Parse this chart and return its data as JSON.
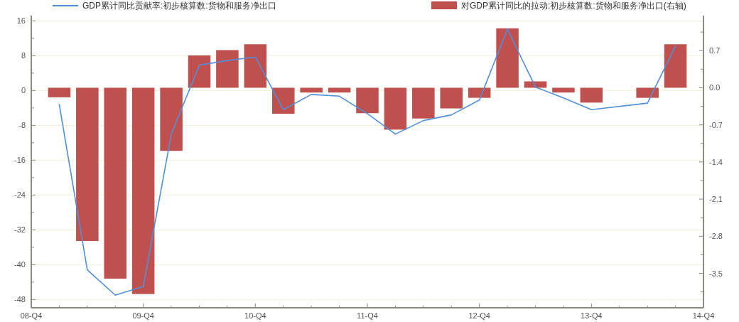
{
  "chart_data": {
    "type": "bar",
    "categories": [
      "08-Q4",
      null,
      null,
      null,
      "09-Q4",
      null,
      null,
      null,
      "10-Q4",
      null,
      null,
      null,
      "11-Q4",
      null,
      null,
      null,
      "12-Q4",
      null,
      null,
      null,
      "13-Q4",
      null,
      null,
      null,
      "14-Q4"
    ],
    "series": [
      {
        "name": "GDP累计同比贡献率:初步核算数:货物和服务净出口",
        "type": "line",
        "color": "#4f8fdc",
        "values": [
          null,
          -3.2,
          -41.2,
          -47.0,
          -45.0,
          -10.0,
          5.8,
          6.9,
          7.7,
          -4.4,
          -0.9,
          -1.3,
          -5.3,
          -10.0,
          -6.9,
          -5.6,
          -2.2,
          14.1,
          0.8,
          -1.7,
          -4.4,
          null,
          -2.9,
          10.2,
          null
        ]
      },
      {
        "name": "对GDP累计同比的拉动:初步核算数:货物和服务净出口(右轴)",
        "axis": "y2",
        "color": "#c0504d",
        "values": [
          null,
          -0.18,
          -2.89,
          -3.6,
          -3.89,
          -1.19,
          0.61,
          0.71,
          0.82,
          -0.49,
          -0.09,
          -0.09,
          -0.48,
          -0.79,
          -0.58,
          -0.39,
          -0.19,
          1.12,
          0.12,
          -0.09,
          -0.28,
          null,
          -0.19,
          0.82,
          null
        ]
      }
    ],
    "ylim": [
      -49.9,
      17.2
    ],
    "yticks": [
      16,
      {
        "value": 12,
        "label": null
      },
      8,
      {
        "value": 4,
        "label": null
      },
      0,
      {
        "value": -4,
        "label": null
      },
      -8,
      {
        "value": -12,
        "label": null
      },
      -16,
      {
        "value": -20,
        "label": null
      },
      -24,
      {
        "value": -28,
        "label": null
      },
      -32,
      {
        "value": -36,
        "label": null
      },
      -40,
      {
        "value": -44,
        "label": null
      },
      -48
    ],
    "y2lim": [
      -4.15,
      1.36
    ],
    "y2ticks": [
      {
        "value": 1.05,
        "label": null
      },
      0.7,
      {
        "value": 0.35,
        "label": null
      },
      {
        "value": 0,
        "label": "0.0"
      },
      {
        "value": -0.35,
        "label": null
      },
      -0.7,
      {
        "value": -1.05,
        "label": null
      },
      -1.4,
      {
        "value": -1.75,
        "label": null
      },
      -2.1,
      {
        "value": -2.45,
        "label": null
      },
      -2.8,
      {
        "value": -3.15,
        "label": null
      },
      -3.5,
      {
        "value": -3.85,
        "label": null
      }
    ],
    "grid": "y",
    "legend": "top"
  }
}
